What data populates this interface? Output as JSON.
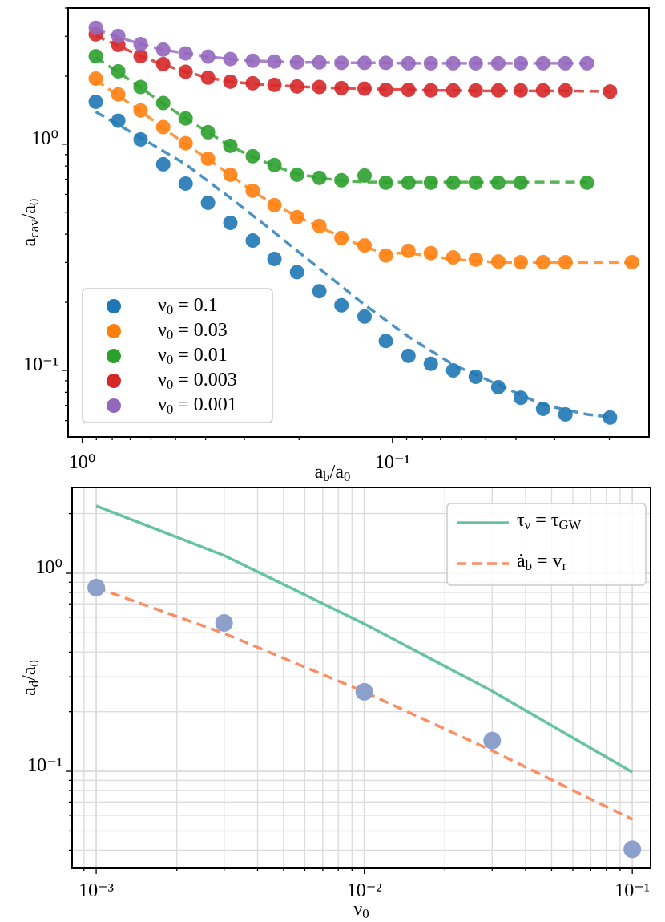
{
  "chart_data": [
    {
      "type": "scatter-line",
      "xscale": "log",
      "yscale": "log",
      "grid": false,
      "legend": "lower left",
      "xlabel": "a_{b}/a_{0}",
      "ylabel": "a_{cav}/a_{0}",
      "xlim": [
        1.11,
        0.0149
      ],
      "ylim": [
        0.0508,
        4.0
      ],
      "xticks": [
        {
          "value": 1,
          "label": "10⁰"
        },
        {
          "value": 0.1,
          "label": "10⁻¹"
        }
      ],
      "xminor": [
        0.9,
        0.8,
        0.7,
        0.6,
        0.5,
        0.4,
        0.3,
        0.2,
        0.09,
        0.08,
        0.07,
        0.06,
        0.05,
        0.04,
        0.03,
        0.02
      ],
      "yticks": [
        {
          "value": 1,
          "label": "10⁰"
        },
        {
          "value": 0.1,
          "label": "10⁻¹"
        }
      ],
      "yminor": [
        0.06,
        0.07,
        0.08,
        0.09,
        0.2,
        0.3,
        0.4,
        0.5,
        0.6,
        0.7,
        0.8,
        0.9,
        2,
        3,
        4
      ],
      "series": [
        {
          "name": "ν_{0} = 0.1",
          "color": "#1f77b4",
          "x": [
            0.904,
            0.765,
            0.648,
            0.548,
            0.464,
            0.393,
            0.333,
            0.282,
            0.24,
            0.203,
            0.172,
            0.146,
            0.123,
            0.105,
            0.0888,
            0.0752,
            0.0637,
            0.0539,
            0.0456,
            0.0386,
            0.0327,
            0.0277,
            0.0199
          ],
          "values": [
            1.54,
            1.27,
            1.05,
            0.815,
            0.67,
            0.551,
            0.449,
            0.375,
            0.311,
            0.272,
            0.224,
            0.194,
            0.173,
            0.135,
            0.116,
            0.107,
            0.1,
            0.0937,
            0.0843,
            0.0757,
            0.0676,
            0.0639,
            0.0619
          ],
          "line_x": [
            0.904,
            0.648,
            0.464,
            0.333,
            0.24,
            0.172,
            0.123,
            0.0888,
            0.0637,
            0.0456,
            0.0327,
            0.0236,
            0.0199
          ],
          "line_values": [
            1.39,
            1.07,
            0.815,
            0.579,
            0.407,
            0.282,
            0.195,
            0.141,
            0.106,
            0.0864,
            0.0704,
            0.0639,
            0.0622
          ]
        },
        {
          "name": "ν_{0} = 0.03",
          "color": "#ff7f0e",
          "x": [
            0.904,
            0.765,
            0.648,
            0.548,
            0.464,
            0.393,
            0.333,
            0.282,
            0.24,
            0.203,
            0.172,
            0.146,
            0.123,
            0.105,
            0.0888,
            0.0752,
            0.0637,
            0.0539,
            0.0456,
            0.0386,
            0.0327,
            0.0277,
            0.0169
          ],
          "values": [
            1.95,
            1.66,
            1.41,
            1.19,
            1.01,
            0.863,
            0.733,
            0.623,
            0.538,
            0.476,
            0.435,
            0.385,
            0.357,
            0.322,
            0.338,
            0.33,
            0.316,
            0.309,
            0.303,
            0.301,
            0.301,
            0.301,
            0.301
          ],
          "line_x": [
            0.904,
            0.765,
            0.648,
            0.548,
            0.464,
            0.393,
            0.333,
            0.282,
            0.24,
            0.203,
            0.172,
            0.146,
            0.123,
            0.105,
            0.0888,
            0.0752,
            0.0637,
            0.0539,
            0.0456,
            0.0386,
            0.0327,
            0.0277,
            0.0169
          ],
          "line_values": [
            1.92,
            1.64,
            1.4,
            1.18,
            1.0,
            0.86,
            0.73,
            0.62,
            0.54,
            0.48,
            0.43,
            0.39,
            0.35,
            0.33,
            0.33,
            0.32,
            0.31,
            0.305,
            0.3,
            0.3,
            0.3,
            0.3,
            0.3
          ]
        },
        {
          "name": "ν_{0} = 0.01",
          "color": "#2ca02c",
          "x": [
            0.904,
            0.765,
            0.648,
            0.548,
            0.464,
            0.393,
            0.333,
            0.282,
            0.24,
            0.203,
            0.172,
            0.146,
            0.123,
            0.105,
            0.0888,
            0.0752,
            0.0637,
            0.0539,
            0.0456,
            0.0386,
            0.0236
          ],
          "values": [
            2.45,
            2.1,
            1.79,
            1.52,
            1.3,
            1.13,
            0.984,
            0.885,
            0.809,
            0.733,
            0.71,
            0.693,
            0.727,
            0.676,
            0.676,
            0.676,
            0.676,
            0.676,
            0.676,
            0.676,
            0.676
          ],
          "line_x": [
            0.904,
            0.765,
            0.648,
            0.548,
            0.464,
            0.393,
            0.333,
            0.282,
            0.24,
            0.203,
            0.172,
            0.146,
            0.123,
            0.105,
            0.0888,
            0.0752,
            0.0637,
            0.0539,
            0.0456,
            0.0386,
            0.0236
          ],
          "line_values": [
            2.42,
            2.08,
            1.78,
            1.51,
            1.3,
            1.13,
            0.98,
            0.88,
            0.8,
            0.74,
            0.71,
            0.69,
            0.68,
            0.68,
            0.68,
            0.68,
            0.68,
            0.68,
            0.68,
            0.68,
            0.68
          ]
        },
        {
          "name": "ν_{0} = 0.003",
          "color": "#d62728",
          "x": [
            0.904,
            0.765,
            0.648,
            0.548,
            0.464,
            0.393,
            0.333,
            0.282,
            0.24,
            0.203,
            0.172,
            0.146,
            0.123,
            0.105,
            0.0888,
            0.0752,
            0.0637,
            0.0539,
            0.0456,
            0.0386,
            0.0327,
            0.0277,
            0.0199
          ],
          "values": [
            3.06,
            2.75,
            2.45,
            2.26,
            2.09,
            1.97,
            1.89,
            1.86,
            1.83,
            1.8,
            1.79,
            1.77,
            1.76,
            1.74,
            1.74,
            1.73,
            1.73,
            1.73,
            1.73,
            1.73,
            1.73,
            1.73,
            1.71
          ],
          "line_x": [
            0.904,
            0.765,
            0.648,
            0.548,
            0.464,
            0.393,
            0.333,
            0.282,
            0.24,
            0.203,
            0.172,
            0.146,
            0.123,
            0.105,
            0.0888,
            0.0752,
            0.0637,
            0.0539,
            0.0456,
            0.0386,
            0.0327,
            0.0277,
            0.0199
          ],
          "line_values": [
            3.02,
            2.73,
            2.45,
            2.25,
            2.09,
            1.97,
            1.89,
            1.85,
            1.82,
            1.8,
            1.78,
            1.77,
            1.76,
            1.75,
            1.74,
            1.73,
            1.73,
            1.72,
            1.72,
            1.72,
            1.72,
            1.72,
            1.71
          ]
        },
        {
          "name": "ν_{0} = 0.001",
          "color": "#9467bd",
          "x": [
            0.904,
            0.765,
            0.648,
            0.548,
            0.464,
            0.393,
            0.333,
            0.282,
            0.24,
            0.203,
            0.172,
            0.146,
            0.123,
            0.105,
            0.0888,
            0.0752,
            0.0637,
            0.0539,
            0.0456,
            0.0386,
            0.0327,
            0.0277,
            0.0236
          ],
          "values": [
            3.27,
            3.01,
            2.77,
            2.62,
            2.52,
            2.44,
            2.38,
            2.34,
            2.32,
            2.3,
            2.3,
            2.29,
            2.29,
            2.29,
            2.28,
            2.28,
            2.28,
            2.28,
            2.28,
            2.28,
            2.28,
            2.28,
            2.28
          ],
          "line_x": [
            0.904,
            0.765,
            0.648,
            0.548,
            0.464,
            0.393,
            0.333,
            0.282,
            0.24,
            0.203,
            0.172,
            0.146,
            0.123,
            0.105,
            0.0888,
            0.0752,
            0.0637,
            0.0539,
            0.0456,
            0.0386,
            0.0327,
            0.0277,
            0.0236
          ],
          "line_values": [
            3.22,
            2.98,
            2.77,
            2.62,
            2.52,
            2.44,
            2.38,
            2.34,
            2.32,
            2.3,
            2.3,
            2.29,
            2.29,
            2.29,
            2.28,
            2.28,
            2.28,
            2.28,
            2.28,
            2.28,
            2.28,
            2.28,
            2.28
          ]
        }
      ]
    },
    {
      "type": "line",
      "xscale": "log",
      "yscale": "log",
      "grid": true,
      "legend": "upper right",
      "xlabel": "ν_{0}",
      "ylabel": "a_{d}/a_{0}",
      "xlim": [
        0.000813,
        0.117
      ],
      "ylim": [
        0.0324,
        2.71
      ],
      "xticks": [
        {
          "value": 0.001,
          "label": "10⁻³"
        },
        {
          "value": 0.01,
          "label": "10⁻²"
        },
        {
          "value": 0.1,
          "label": "10⁻¹"
        }
      ],
      "xminor": [
        0.0009,
        0.002,
        0.003,
        0.004,
        0.005,
        0.006,
        0.007,
        0.008,
        0.009,
        0.02,
        0.03,
        0.04,
        0.05,
        0.06,
        0.07,
        0.08,
        0.09
      ],
      "yticks": [
        {
          "value": 1,
          "label": "10⁰"
        },
        {
          "value": 0.1,
          "label": "10⁻¹"
        }
      ],
      "yminor": [
        0.04,
        0.05,
        0.06,
        0.07,
        0.08,
        0.09,
        0.2,
        0.3,
        0.4,
        0.5,
        0.6,
        0.7,
        0.8,
        0.9,
        2
      ],
      "series": [
        {
          "name": "τ_{ν} = τ_{GW}",
          "color": "#66c2a5",
          "style": "solid",
          "x": [
            0.001,
            0.003,
            0.01,
            0.03,
            0.1
          ],
          "values": [
            2.19,
            1.23,
            0.556,
            0.254,
            0.099
          ]
        },
        {
          "name": "ȧ_{b} = v_{r}",
          "color": "#fc8d62",
          "style": "dashed",
          "x": [
            0.001,
            0.003,
            0.01,
            0.03,
            0.1
          ],
          "values": [
            0.846,
            0.497,
            0.252,
            0.127,
            0.0572
          ]
        }
      ],
      "points": {
        "color": "#8da0cb",
        "x": [
          0.001,
          0.003,
          0.01,
          0.03,
          0.1
        ],
        "values": [
          0.846,
          0.561,
          0.252,
          0.143,
          0.0404
        ]
      }
    }
  ]
}
